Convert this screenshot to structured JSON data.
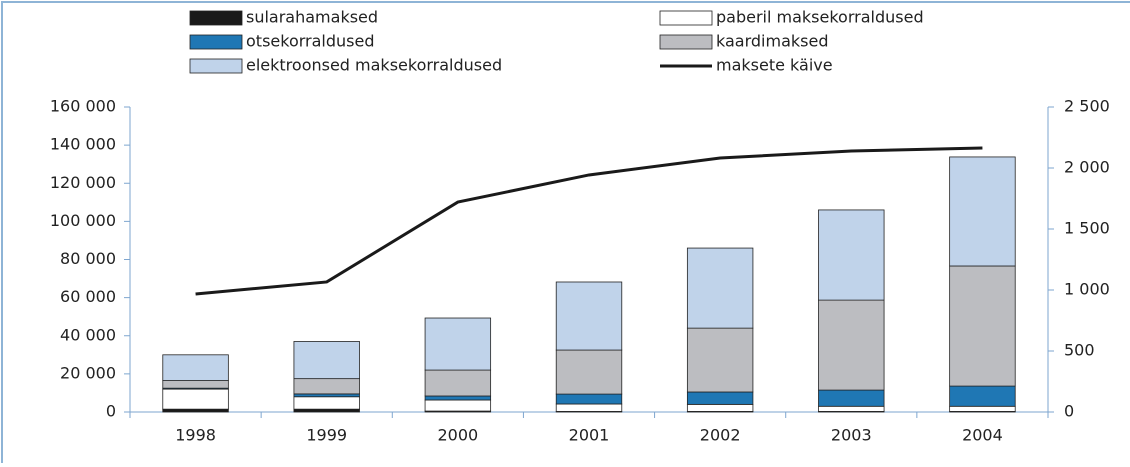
{
  "chart_data": {
    "type": "stacked-bar-line",
    "categories": [
      "1998",
      "1999",
      "2000",
      "2001",
      "2002",
      "2003",
      "2004"
    ],
    "series": [
      {
        "name": "sularahamaksed",
        "color": "#1a1a1a",
        "values": [
          1500,
          1500,
          500,
          300,
          300,
          300,
          300
        ]
      },
      {
        "name": "paberil maksekorraldused",
        "color": "#ffffff",
        "values": [
          10500,
          6500,
          5800,
          3900,
          3700,
          2700,
          2700
        ]
      },
      {
        "name": "otsekorraldused",
        "color": "#1f77b4",
        "values": [
          500,
          1500,
          2100,
          5200,
          6500,
          8500,
          10600
        ]
      },
      {
        "name": "kaardimaksed",
        "color": "#bcbdc1",
        "values": [
          4000,
          8000,
          13600,
          23100,
          33500,
          47200,
          63000
        ]
      },
      {
        "name": "elektroonsed maksekorraldused",
        "color": "#c0d3ea",
        "values": [
          13500,
          19500,
          27300,
          35700,
          42000,
          47300,
          57200
        ]
      },
      {
        "name": "maksete käive",
        "color": "#1a1a1a",
        "axis": "y2",
        "type": "line",
        "values": [
          967,
          1066,
          1721,
          1943,
          2082,
          2139,
          2164
        ]
      }
    ],
    "ylim": [
      0,
      160000
    ],
    "yticks": [
      0,
      {
        "value": 20000,
        "label": "20 000"
      },
      {
        "value": 40000,
        "label": "40 000"
      },
      {
        "value": 60000,
        "label": "60 000"
      },
      {
        "value": 80000,
        "label": "80 000"
      },
      {
        "value": 100000,
        "label": "100 000"
      },
      {
        "value": 120000,
        "label": "120 000"
      },
      {
        "value": 140000,
        "label": "140 000"
      },
      {
        "value": 160000,
        "label": "160 000"
      }
    ],
    "y2lim": [
      0,
      2500
    ],
    "y2ticks": [
      0,
      500,
      {
        "value": 1000,
        "label": "1 000"
      },
      {
        "value": 1500,
        "label": "1 500"
      },
      {
        "value": 2000,
        "label": "2 000"
      },
      {
        "value": 2500,
        "label": "2 500"
      }
    ]
  }
}
